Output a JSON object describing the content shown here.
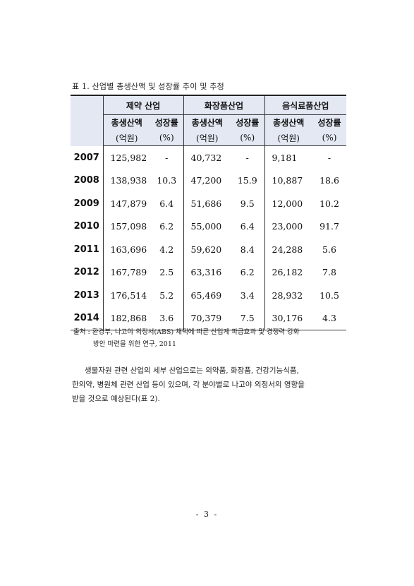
{
  "caption": "표 1. 산업별 총생산액 및 성장률 추이 및 추정",
  "table": {
    "groups": [
      "제약 산업",
      "화장품산업",
      "음식료품산업"
    ],
    "subheaders": {
      "production": "총생산액",
      "growth": "성장률",
      "production_unit": "(억원)",
      "growth_unit": "(%)"
    },
    "rows": [
      {
        "year": "2007",
        "pharma": "125,982",
        "pharma_rate": "-",
        "cosmetics": "40,732",
        "cosmetics_rate": "-",
        "food": "9,181",
        "food_rate": "-"
      },
      {
        "year": "2008",
        "pharma": "138,938",
        "pharma_rate": "10.3",
        "cosmetics": "47,200",
        "cosmetics_rate": "15.9",
        "food": "10,887",
        "food_rate": "18.6"
      },
      {
        "year": "2009",
        "pharma": "147,879",
        "pharma_rate": "6.4",
        "cosmetics": "51,686",
        "cosmetics_rate": "9.5",
        "food": "12,000",
        "food_rate": "10.2"
      },
      {
        "year": "2010",
        "pharma": "157,098",
        "pharma_rate": "6.2",
        "cosmetics": "55,000",
        "cosmetics_rate": "6.4",
        "food": "23,000",
        "food_rate": "91.7"
      },
      {
        "year": "2011",
        "pharma": "163,696",
        "pharma_rate": "4.2",
        "cosmetics": "59,620",
        "cosmetics_rate": "8.4",
        "food": "24,288",
        "food_rate": "5.6"
      },
      {
        "year": "2012",
        "pharma": "167,789",
        "pharma_rate": "2.5",
        "cosmetics": "63,316",
        "cosmetics_rate": "6.2",
        "food": "26,182",
        "food_rate": "7.8"
      },
      {
        "year": "2013",
        "pharma": "176,514",
        "pharma_rate": "5.2",
        "cosmetics": "65,469",
        "cosmetics_rate": "3.4",
        "food": "28,932",
        "food_rate": "10.5"
      },
      {
        "year": "2014",
        "pharma": "182,868",
        "pharma_rate": "3.6",
        "cosmetics": "70,379",
        "cosmetics_rate": "7.5",
        "food": "30,176",
        "food_rate": "4.3"
      }
    ]
  },
  "source": {
    "line1": "출처 : 환경부, 나고야 의정서(ABS) 채택에 따른 산업계 파급효과 및 경쟁력 강화",
    "line2": "방안 마련을 위한 연구, 2011"
  },
  "paragraph": {
    "line1": "생물자원 관련 산업의 세부 산업으로는 의약품, 화장품, 건강기능식품,",
    "line2": "한의약, 병원체 관련 산업 등이 있으며, 각 분야별로 나고야 의정서의 영향을",
    "line3": "받을 것으로 예상된다(표 2)."
  },
  "page_number": "- 3 -"
}
